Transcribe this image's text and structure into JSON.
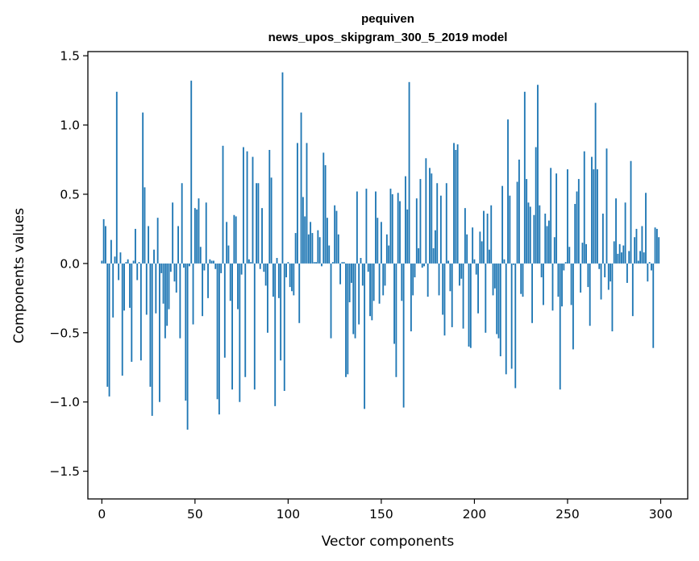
{
  "chart_data": {
    "type": "bar",
    "title": "pequiven",
    "subtitle": "news_upos_skipgram_300_5_2019 model",
    "xlabel": "Vector components",
    "ylabel": "Components values",
    "xlim": [
      -7.5,
      314.5
    ],
    "ylim": [
      -1.7,
      1.53
    ],
    "xticks": [
      0,
      50,
      100,
      150,
      200,
      250,
      300
    ],
    "yticks": [
      -1.5,
      -1.0,
      -0.5,
      0.0,
      0.5,
      1.0,
      1.5
    ],
    "ytick_labels": [
      "−1.5",
      "−1.0",
      "−0.5",
      "0.0",
      "0.5",
      "1.0",
      "1.5"
    ],
    "grid": false,
    "color": "#1f77b4",
    "values": [
      0.02,
      0.32,
      0.27,
      -0.89,
      -0.96,
      0.17,
      -0.39,
      0.05,
      1.24,
      -0.12,
      0.08,
      -0.81,
      -0.34,
      0.01,
      0.03,
      -0.32,
      -0.71,
      0.02,
      0.25,
      -0.12,
      0.01,
      -0.7,
      1.09,
      0.55,
      -0.37,
      0.27,
      -0.89,
      -1.1,
      0.1,
      -0.36,
      0.33,
      -1.0,
      -0.07,
      -0.29,
      -0.54,
      -0.45,
      -0.33,
      -0.06,
      0.44,
      -0.13,
      -0.21,
      0.27,
      -0.54,
      0.58,
      -0.03,
      -0.99,
      -1.2,
      -0.02,
      1.32,
      -0.44,
      0.4,
      0.39,
      0.47,
      0.12,
      -0.38,
      -0.05,
      0.44,
      -0.25,
      0.03,
      0.02,
      0.02,
      -0.04,
      -0.98,
      -1.09,
      -0.07,
      0.85,
      -0.68,
      0.3,
      0.13,
      -0.27,
      -0.91,
      0.35,
      0.34,
      -0.33,
      -1.0,
      -0.08,
      0.84,
      -0.82,
      0.81,
      0.03,
      0.01,
      0.77,
      -0.91,
      0.58,
      0.58,
      -0.04,
      0.4,
      -0.06,
      -0.16,
      -0.5,
      0.82,
      0.62,
      -0.24,
      -1.03,
      0.04,
      -0.25,
      -0.7,
      1.38,
      -0.92,
      -0.1,
      0.01,
      -0.17,
      -0.2,
      -0.23,
      0.22,
      0.87,
      -0.43,
      1.09,
      0.48,
      0.34,
      0.87,
      0.21,
      0.3,
      0.22,
      0.01,
      0.01,
      0.24,
      0.19,
      -0.02,
      0.8,
      0.71,
      0.33,
      0.13,
      -0.54,
      0.01,
      0.42,
      0.38,
      0.21,
      -0.15,
      0.01,
      0.01,
      -0.82,
      -0.8,
      -0.28,
      -0.14,
      -0.51,
      -0.54,
      0.52,
      -0.44,
      0.04,
      -0.16,
      -1.05,
      0.54,
      -0.06,
      -0.38,
      -0.41,
      -0.27,
      0.52,
      0.33,
      -0.29,
      0.3,
      -0.23,
      -0.16,
      0.21,
      0.13,
      0.54,
      0.5,
      -0.58,
      -0.82,
      0.51,
      0.45,
      -0.27,
      -1.04,
      0.63,
      0.39,
      1.31,
      -0.49,
      -0.23,
      -0.1,
      0.47,
      0.11,
      0.61,
      -0.03,
      -0.02,
      0.76,
      -0.24,
      0.69,
      0.65,
      0.11,
      0.24,
      0.58,
      -0.23,
      0.49,
      -0.37,
      -0.52,
      0.58,
      0.02,
      -0.2,
      -0.46,
      0.87,
      0.82,
      0.86,
      -0.16,
      -0.11,
      -0.47,
      0.4,
      0.21,
      -0.6,
      -0.61,
      0.26,
      0.03,
      -0.08,
      -0.36,
      0.23,
      0.16,
      0.38,
      -0.5,
      0.36,
      0.1,
      0.42,
      -0.23,
      -0.18,
      -0.51,
      -0.54,
      -0.67,
      0.56,
      0.03,
      -0.8,
      1.04,
      0.49,
      -0.76,
      -0.01,
      -0.9,
      0.59,
      0.75,
      -0.22,
      -0.24,
      1.24,
      0.61,
      0.44,
      0.41,
      -0.43,
      0.35,
      0.84,
      1.29,
      0.42,
      -0.1,
      -0.3,
      0.36,
      0.27,
      0.31,
      0.69,
      -0.34,
      0.19,
      0.65,
      -0.24,
      -0.91,
      -0.31,
      -0.05,
      0.01,
      0.68,
      0.12,
      -0.3,
      -0.62,
      0.43,
      0.52,
      0.61,
      -0.21,
      0.15,
      0.81,
      0.14,
      -0.17,
      -0.45,
      0.77,
      0.68,
      1.16,
      0.68,
      -0.04,
      -0.26,
      0.36,
      -0.1,
      0.83,
      -0.19,
      -0.13,
      -0.49,
      0.16,
      0.47,
      0.07,
      0.14,
      0.08,
      0.13,
      0.44,
      -0.14,
      0.09,
      0.74,
      -0.38,
      0.19,
      0.25,
      0.02,
      0.09,
      0.27,
      0.08,
      0.51,
      -0.13,
      0.01,
      -0.05,
      -0.61,
      0.26,
      0.25,
      0.19
    ]
  },
  "chart_data_extra": {}
}
